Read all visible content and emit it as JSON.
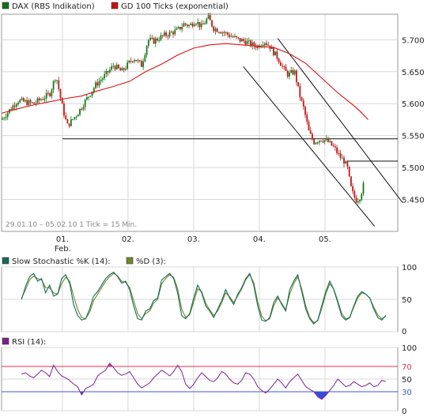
{
  "colors": {
    "price_up": "#1a7a1a",
    "price_down": "#c01818",
    "ma": "#dd1111",
    "stoch_k": "#166a5a",
    "stoch_d": "#6d8a2a",
    "rsi": "#7a2490",
    "rsi_overbought_fill": "#e04060",
    "rsi_oversold_fill": "#3a4ad8",
    "line_70": "#e03050",
    "line_30": "#3a5ad8",
    "grid": "#d8d8d8",
    "frame": "#9a9a9a"
  },
  "chart_data": [
    {
      "type": "line",
      "panel": "price",
      "legend": [
        {
          "label": "DAX (RBS Indikation)",
          "color": "#167016"
        },
        {
          "label": "GD 100 Ticks (exponential)",
          "color": "#cc1010"
        }
      ],
      "subtitle": "29.01.10 – 05.02.10   1 Tick = 15 Min.",
      "x_ticks": [
        {
          "label": "01.",
          "sub": "Feb.",
          "t": 76
        },
        {
          "label": "02.",
          "t": 158
        },
        {
          "label": "03.",
          "t": 240
        },
        {
          "label": "04.",
          "t": 322
        },
        {
          "label": "05.",
          "t": 404
        }
      ],
      "x_range": [
        0,
        495
      ],
      "ylim": [
        5400,
        5740
      ],
      "y_ticks": [
        "5.450",
        "5.500",
        "5.550",
        "5.600",
        "5.650",
        "5.700"
      ],
      "y_tick_values": [
        5450,
        5500,
        5550,
        5600,
        5650,
        5700
      ],
      "series": [
        {
          "name": "DAX (RBS Indikation)",
          "style": "candlestick",
          "x": [
            0,
            20,
            40,
            60,
            68,
            75,
            82,
            95,
            105,
            118,
            130,
            140,
            150,
            165,
            175,
            183,
            190,
            200,
            210,
            220,
            228,
            235,
            242,
            250,
            258,
            265,
            272,
            280,
            288,
            296,
            304,
            312,
            320,
            328,
            335,
            340,
            345,
            352,
            358,
            362,
            366,
            372,
            378,
            384,
            390,
            400,
            408,
            416,
            422,
            428,
            432,
            436,
            440,
            444,
            448,
            452
          ],
          "y": [
            5575,
            5605,
            5600,
            5615,
            5645,
            5600,
            5565,
            5585,
            5605,
            5630,
            5645,
            5660,
            5650,
            5672,
            5660,
            5700,
            5698,
            5705,
            5710,
            5715,
            5725,
            5722,
            5730,
            5720,
            5735,
            5718,
            5715,
            5710,
            5705,
            5700,
            5698,
            5692,
            5690,
            5698,
            5690,
            5680,
            5672,
            5655,
            5645,
            5648,
            5650,
            5615,
            5590,
            5555,
            5540,
            5545,
            5540,
            5530,
            5518,
            5510,
            5500,
            5470,
            5455,
            5448,
            5455,
            5472
          ]
        },
        {
          "name": "GD 100 Ticks (exponential)",
          "x": [
            0,
            20,
            40,
            60,
            80,
            100,
            120,
            140,
            160,
            180,
            200,
            220,
            240,
            260,
            280,
            300,
            320,
            340,
            360,
            380,
            400,
            420,
            440,
            448,
            458
          ],
          "y": [
            5585,
            5592,
            5598,
            5603,
            5608,
            5612,
            5620,
            5627,
            5635,
            5650,
            5662,
            5676,
            5687,
            5692,
            5694,
            5692,
            5690,
            5688,
            5678,
            5663,
            5640,
            5617,
            5597,
            5588,
            5575
          ]
        }
      ],
      "annotations": [
        {
          "kind": "horizontal",
          "y": 5545,
          "x0": 76
        },
        {
          "kind": "horizontal",
          "y": 5510,
          "x0": 432
        },
        {
          "kind": "channel_line",
          "x": [
            302,
            466
          ],
          "y": [
            5658,
            5408
          ]
        },
        {
          "kind": "channel_line",
          "x": [
            345,
            501
          ],
          "y": [
            5702,
            5445
          ]
        }
      ]
    },
    {
      "type": "line",
      "panel": "stochastic",
      "legend": [
        {
          "label": "Slow Stochastic %K (14):",
          "color": "#166a5a"
        },
        {
          "label": "%D (3):",
          "color": "#6d8a2a"
        }
      ],
      "ylim": [
        0,
        100
      ],
      "y_ticks": [
        "100",
        "50",
        "0"
      ],
      "y_tick_values": [
        100,
        50,
        0
      ],
      "x_range": [
        0,
        495
      ],
      "series": [
        {
          "name": "%K",
          "x": [
            0,
            5,
            10,
            15,
            20,
            25,
            30,
            35,
            40,
            45,
            50,
            55,
            60,
            65,
            70,
            75,
            80,
            85,
            90,
            95,
            100,
            105,
            110,
            115,
            120,
            125,
            130,
            135,
            140,
            145,
            150,
            155,
            160,
            165,
            170,
            175,
            180,
            185,
            190,
            195,
            200,
            205,
            210,
            215,
            220,
            225,
            230,
            235,
            240,
            245,
            250,
            255,
            260,
            265,
            270,
            275,
            280,
            285,
            290,
            295,
            300,
            305,
            310,
            315,
            320,
            325,
            330,
            335,
            340,
            345,
            350,
            355,
            360,
            365,
            370,
            375,
            380,
            385,
            390,
            395,
            400,
            405,
            410,
            415,
            420,
            425,
            430,
            435,
            440,
            445,
            450,
            455
          ],
          "y": [
            50,
            70,
            85,
            90,
            78,
            82,
            60,
            72,
            55,
            58,
            82,
            88,
            75,
            42,
            25,
            18,
            20,
            35,
            55,
            62,
            72,
            82,
            88,
            92,
            85,
            75,
            78,
            65,
            40,
            20,
            18,
            32,
            35,
            48,
            52,
            80,
            85,
            90,
            82,
            60,
            25,
            20,
            28,
            52,
            72,
            60,
            40,
            32,
            22,
            35,
            48,
            65,
            52,
            42,
            58,
            68,
            82,
            90,
            72,
            40,
            18,
            16,
            22,
            45,
            55,
            42,
            32,
            65,
            78,
            88,
            62,
            35,
            20,
            12,
            18,
            40,
            62,
            78,
            65,
            45,
            24,
            18,
            22,
            40,
            55,
            62,
            58,
            52,
            35,
            22,
            18,
            25
          ]
        },
        {
          "name": "%D",
          "x": [
            0,
            5,
            10,
            15,
            20,
            25,
            30,
            35,
            40,
            45,
            50,
            55,
            60,
            65,
            70,
            75,
            80,
            85,
            90,
            95,
            100,
            105,
            110,
            115,
            120,
            125,
            130,
            135,
            140,
            145,
            150,
            155,
            160,
            165,
            170,
            175,
            180,
            185,
            190,
            195,
            200,
            205,
            210,
            215,
            220,
            225,
            230,
            235,
            240,
            245,
            250,
            255,
            260,
            265,
            270,
            275,
            280,
            285,
            290,
            295,
            300,
            305,
            310,
            315,
            320,
            325,
            330,
            335,
            340,
            345,
            350,
            355,
            360,
            365,
            370,
            375,
            380,
            385,
            390,
            395,
            400,
            405,
            410,
            415,
            420,
            425,
            430,
            435,
            440,
            445,
            450,
            455
          ],
          "y": [
            52,
            65,
            80,
            86,
            82,
            80,
            68,
            68,
            60,
            58,
            74,
            84,
            78,
            55,
            35,
            22,
            20,
            30,
            48,
            58,
            68,
            78,
            85,
            90,
            86,
            78,
            76,
            68,
            48,
            28,
            20,
            28,
            32,
            44,
            50,
            74,
            82,
            88,
            84,
            66,
            35,
            22,
            26,
            46,
            66,
            62,
            44,
            34,
            25,
            32,
            45,
            60,
            54,
            45,
            55,
            66,
            80,
            88,
            76,
            46,
            24,
            17,
            20,
            40,
            52,
            44,
            34,
            58,
            74,
            85,
            66,
            40,
            22,
            14,
            17,
            36,
            58,
            74,
            66,
            48,
            28,
            20,
            22,
            38,
            52,
            60,
            58,
            52,
            38,
            26,
            20,
            24
          ]
        }
      ]
    },
    {
      "type": "line",
      "panel": "rsi",
      "legend": [
        {
          "label": "RSI (14):",
          "color": "#7a2490"
        }
      ],
      "ylim": [
        0,
        100
      ],
      "y_ticks": [
        "100",
        "70",
        "50",
        "30",
        "0"
      ],
      "y_tick_values": [
        100,
        70,
        50,
        30,
        0
      ],
      "reference_levels": [
        {
          "value": 70,
          "label": "70"
        },
        {
          "value": 30,
          "label": "30"
        }
      ],
      "x_range": [
        0,
        495
      ],
      "series": [
        {
          "name": "RSI",
          "x": [
            0,
            5,
            10,
            15,
            20,
            25,
            30,
            35,
            40,
            45,
            50,
            55,
            60,
            65,
            70,
            75,
            80,
            85,
            90,
            95,
            100,
            105,
            110,
            115,
            120,
            125,
            130,
            135,
            140,
            145,
            150,
            155,
            160,
            165,
            170,
            175,
            180,
            185,
            190,
            195,
            200,
            205,
            210,
            215,
            220,
            225,
            230,
            235,
            240,
            245,
            250,
            255,
            260,
            265,
            270,
            275,
            280,
            285,
            290,
            295,
            300,
            305,
            310,
            315,
            320,
            325,
            330,
            335,
            340,
            345,
            350,
            355,
            360,
            365,
            370,
            375,
            380,
            385,
            390,
            395,
            400,
            405,
            410,
            415,
            420,
            425,
            430,
            435,
            440,
            445,
            450,
            455
          ],
          "y": [
            58,
            60,
            55,
            52,
            58,
            64,
            60,
            54,
            72,
            62,
            55,
            52,
            48,
            42,
            38,
            25,
            35,
            38,
            42,
            55,
            60,
            64,
            75,
            68,
            60,
            56,
            58,
            62,
            52,
            42,
            36,
            40,
            44,
            52,
            58,
            64,
            60,
            55,
            62,
            72,
            62,
            42,
            35,
            42,
            52,
            60,
            54,
            48,
            46,
            52,
            62,
            58,
            50,
            44,
            42,
            48,
            60,
            58,
            50,
            38,
            32,
            28,
            34,
            42,
            50,
            44,
            36,
            46,
            52,
            58,
            48,
            38,
            34,
            30,
            22,
            18,
            24,
            32,
            40,
            50,
            44,
            38,
            40,
            46,
            42,
            38,
            40,
            44,
            38,
            40,
            48,
            46
          ]
        }
      ]
    }
  ]
}
